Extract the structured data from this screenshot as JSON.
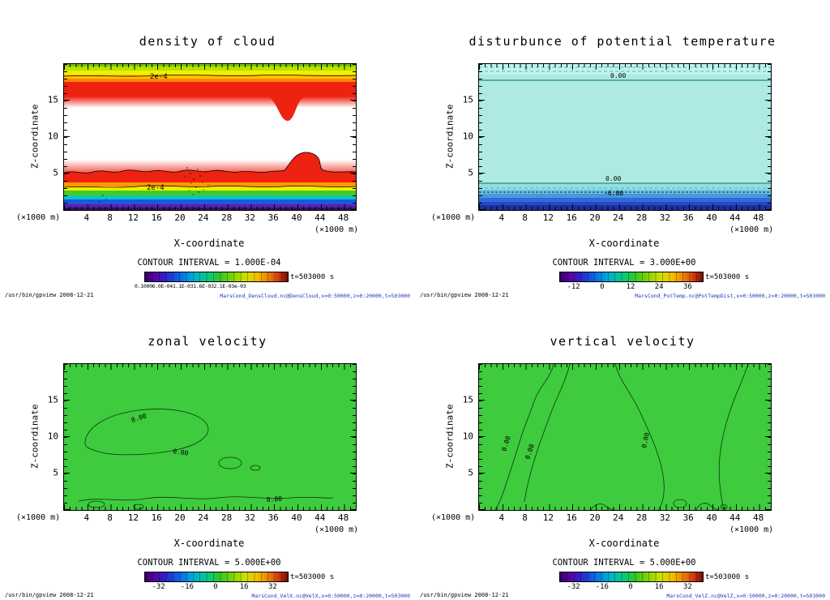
{
  "shared": {
    "ylabel": "Z-coordinate",
    "xlabel": "X-coordinate",
    "y_unit": "(×1000 m)",
    "x_unit": "(×1000 m)",
    "x_ticks": [
      "4",
      "8",
      "12",
      "16",
      "20",
      "24",
      "28",
      "32",
      "36",
      "40",
      "44",
      "48"
    ],
    "y_ticks": [
      "15",
      "10",
      "5"
    ],
    "time_label": "t=503000 s",
    "footer_left": "/usr/bin/gpview  2008-12-21"
  },
  "panels": [
    {
      "title": "density of cloud",
      "contour_interval": "CONTOUR INTERVAL = 1.000E-04",
      "contour_label": "2e-4",
      "colorbar_overlap_label": "0.10006.0E-041.1E-031.6E-032.1E-03e-03",
      "footer_right": "MarsCond_DensCloud.nc@DensCloud,x=0:50000,z=0:20000,t=503000"
    },
    {
      "title": "disturbunce of potential temperature",
      "contour_interval": "CONTOUR INTERVAL = 3.000E+00",
      "labels": {
        "zero": "0.00",
        "minus6": "-6.00"
      },
      "colorbar_ticks": [
        "-12",
        "0",
        "12",
        "24",
        "36"
      ],
      "footer_right": "MarsCond_PotTemp.nc@PotTempDist,x=0:50000,z=0:20000,t=503000"
    },
    {
      "title": "zonal velocity",
      "contour_interval": "CONTOUR INTERVAL = 5.000E+00",
      "labels": {
        "zero": "0.00"
      },
      "colorbar_ticks": [
        "-32",
        "-16",
        "0",
        "16",
        "32"
      ],
      "footer_right": "MarsCond_VelX.nc@VelX,x=0:50000,z=0:20000,t=503000"
    },
    {
      "title": "vertical velocity",
      "contour_interval": "CONTOUR INTERVAL = 5.000E+00",
      "labels": {
        "zero": "0.00"
      },
      "colorbar_ticks": [
        "-32",
        "-16",
        "0",
        "16",
        "32"
      ],
      "footer_right": "MarsCond_VelZ.nc@VelZ,x=0:50000,z=0:20000,t=503000"
    }
  ],
  "chart_data": [
    {
      "type": "heatmap",
      "title": "density of cloud",
      "xlabel": "X-coordinate (×1000 m)",
      "ylabel": "Z-coordinate (×1000 m)",
      "x_range": [
        0,
        50
      ],
      "z_range": [
        0,
        20
      ],
      "time_s": 503000,
      "contour_interval": 0.0001,
      "labeled_contour_value": 0.0002,
      "palette": "rainbow (purple=low, red=high), white below lowest level",
      "vertical_profile_mean": [
        {
          "z": 0.5,
          "value": 0.00015
        },
        {
          "z": 1.5,
          "value": 0.0004
        },
        {
          "z": 2.5,
          "value": 0.0008
        },
        {
          "z": 3.5,
          "value": 0.0013
        },
        {
          "z": 4.5,
          "value": 0.0019
        },
        {
          "z": 5.3,
          "value": 0.0002
        },
        {
          "z": 6.0,
          "value": 0.0
        },
        {
          "z": 11.5,
          "value": 0.0
        },
        {
          "z": 12.5,
          "value": 0.0004
        },
        {
          "z": 14.0,
          "value": 0.0019
        },
        {
          "z": 17.0,
          "value": 0.0019
        },
        {
          "z": 18.5,
          "value": 0.0011
        },
        {
          "z": 19.5,
          "value": 0.0004
        }
      ],
      "features": [
        "thick high-density cloud layer (red) between z≈12.5 and z≈18 topped by orange-yellow-green gradient to z≈20",
        "cloud-free white gap between z≈6 and z≈12",
        "shallow lower deck from surface to z≈5 increasing upward from purple/blue at ground through cyan-green-yellow-orange to a red maximum near z≈4-5",
        "wiggly 2e-4 contour along the lower deck with a hooked plume near x≈39-44",
        "notch in the upper layer near x≈37-40",
        "speckled high-density dots near x≈20-25, z≈2-5"
      ]
    },
    {
      "type": "contour",
      "title": "disturbunce of potential temperature",
      "xlabel": "X-coordinate (×1000 m)",
      "ylabel": "Z-coordinate (×1000 m)",
      "x_range": [
        0,
        50
      ],
      "z_range": [
        0,
        20
      ],
      "time_s": 503000,
      "contour_interval": 3.0,
      "labeled_contours": [
        0.0,
        -6.0
      ],
      "colorbar_ticks": [
        -12,
        0,
        12,
        24,
        36
      ],
      "vertical_profile_mean": [
        {
          "z": 0.3,
          "value": -12
        },
        {
          "z": 1.0,
          "value": -9
        },
        {
          "z": 2.0,
          "value": -6
        },
        {
          "z": 3.0,
          "value": -1
        },
        {
          "z": 4.0,
          "value": 0
        },
        {
          "z": 17.5,
          "value": 0
        },
        {
          "z": 19.5,
          "value": 1
        }
      ],
      "features": [
        "near-zero disturbance (uniform pale teal) through most of the domain",
        "0.00 contour near z≈17.5 (solid) with dashed contours above near z≈19",
        "0.00 and dashed -6.00 contours near z≈2-3",
        "negative layer below z≈3, decreasing to ≈ -12 (dark blue) at the surface"
      ]
    },
    {
      "type": "contour",
      "title": "zonal velocity",
      "xlabel": "X-coordinate (×1000 m)",
      "ylabel": "Z-coordinate (×1000 m)",
      "x_range": [
        0,
        50
      ],
      "z_range": [
        0,
        20
      ],
      "time_s": 503000,
      "contour_interval": 5.0,
      "labeled_contours": [
        0.0
      ],
      "colorbar_ticks": [
        -32,
        -16,
        0,
        16,
        32
      ],
      "features": [
        "velocity ≈ 0 everywhere (uniform green, |u| < 5)",
        "closed 0.00 contour lobe spanning x≈3-25, z≈7-13",
        "small closed 0.00 cells near x≈26-34, z≈6-7",
        "wavy 0.00 contour along z≈1-2 near the surface with small closed cells"
      ]
    },
    {
      "type": "contour",
      "title": "vertical velocity",
      "xlabel": "X-coordinate (×1000 m)",
      "ylabel": "Z-coordinate (×1000 m)",
      "x_range": [
        0,
        50
      ],
      "z_range": [
        0,
        20
      ],
      "time_s": 503000,
      "contour_interval": 5.0,
      "labeled_contours": [
        0.0
      ],
      "colorbar_ticks": [
        -32,
        -16,
        0,
        16,
        32
      ],
      "features": [
        "velocity ≈ 0 everywhere (uniform green, |w| < 5)",
        "meandering near-vertical 0.00 contours around x≈4-13, x≈23-31 and x≈41-46 spanning the full depth",
        "small closed 0.00 cells near the surface around x≈19-42"
      ]
    }
  ]
}
